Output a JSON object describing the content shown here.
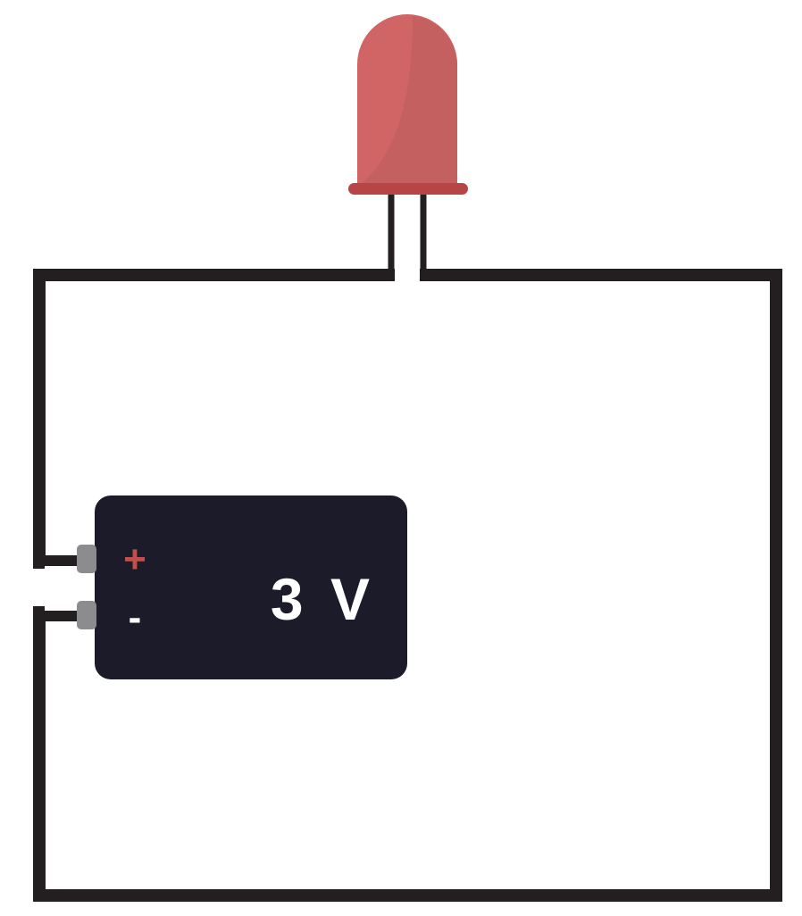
{
  "battery": {
    "voltage_label": "3 V",
    "positive_symbol": "+",
    "negative_symbol": "-",
    "body_color": "#1c1b29",
    "label_color": "#ffffff",
    "positive_color": "#c0504d",
    "terminal_color": "#8c8c8e"
  },
  "led": {
    "color": "#d16566",
    "shade_color": "#c4605f",
    "base_color": "#b84446",
    "icon": "led-icon"
  },
  "circuit": {
    "wire_color": "#231f20",
    "background": "#ffffff"
  }
}
